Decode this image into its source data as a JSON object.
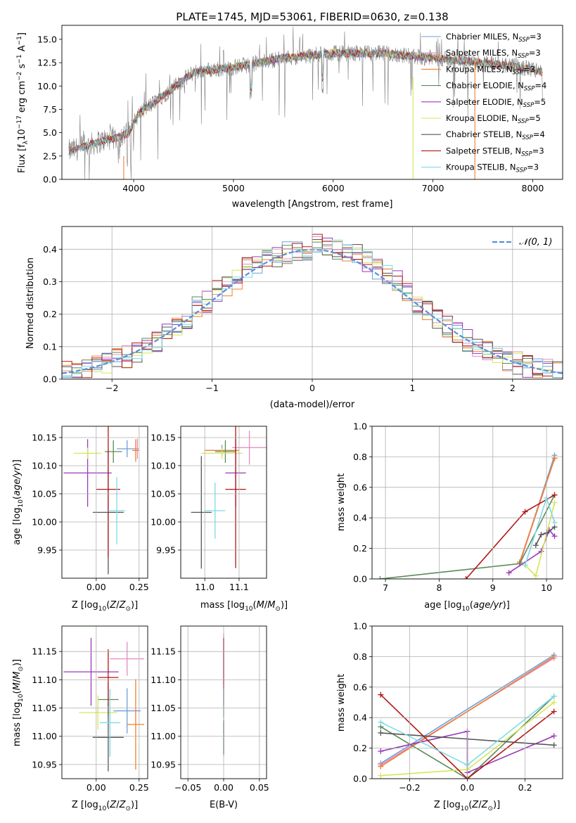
{
  "colors": {
    "chabrier_miles": "#6e9fd6",
    "salpeter_miles": "#e88ac2",
    "kroupa_miles": "#f07f2f",
    "chabrier_elodie": "#5a8a5a",
    "salpeter_elodie": "#9a38b8",
    "kroupa_elodie": "#d6e65a",
    "chabrier_stelib": "#555555",
    "salpeter_stelib": "#b01818",
    "kroupa_stelib": "#7fdbe4",
    "normal": "#5b8ddb",
    "data": "#808080"
  },
  "chart_data": [
    {
      "id": "spectrum",
      "type": "line",
      "title": "PLATE=1745, MJD=53061, FIBERID=0630, z=0.138",
      "xlabel": "wavelength [Angstrom, rest frame]",
      "ylabel": "Flux [fλ10⁻¹⁷ erg cm⁻² s⁻¹ A⁻¹]",
      "xlim": [
        3280,
        8300
      ],
      "ylim": [
        0,
        16.5
      ],
      "xticks": [
        "4000",
        "5000",
        "6000",
        "7000",
        "8000"
      ],
      "yticks": [
        "0.0",
        "2.5",
        "5.0",
        "7.5",
        "10.0",
        "12.5",
        "15.0"
      ],
      "continuum": {
        "x": [
          3350,
          3500,
          3700,
          3850,
          3950,
          4050,
          4300,
          4600,
          5000,
          5500,
          6000,
          6500,
          7000,
          7500,
          8000,
          8100
        ],
        "y": [
          3.0,
          3.5,
          4.2,
          4.5,
          5.0,
          7.0,
          9.0,
          11.5,
          12.0,
          13.0,
          13.5,
          13.5,
          13.0,
          12.5,
          11.8,
          11.5
        ]
      },
      "legend": [
        "Chabrier MILES, N<sub>SSP</sub>=3",
        "Salpeter MILES, N<sub>SSP</sub>=3",
        "Kroupa MILES, N<sub>SSP</sub>=3",
        "Chabrier ELODIE, N<sub>SSP</sub>=4",
        "Salpeter ELODIE, N<sub>SSP</sub>=5",
        "Kroupa ELODIE, N<sub>SSP</sub>=5",
        "Chabrier STELIB, N<sub>SSP</sub>=4",
        "Salpeter STELIB, N<sub>SSP</sub>=3",
        "Kroupa STELIB, N<sub>SSP</sub>=3"
      ],
      "legend_location": "upper right"
    },
    {
      "id": "residuals",
      "type": "histogram",
      "xlabel": "(data-model)/error",
      "ylabel": "Normed distribution",
      "xlim": [
        -2.5,
        2.5
      ],
      "ylim": [
        0,
        0.47
      ],
      "xticks": [
        "−2",
        "−1",
        "0",
        "1",
        "2"
      ],
      "yticks": [
        "0.0",
        "0.1",
        "0.2",
        "0.3",
        "0.4"
      ],
      "bin_edges": [
        -2.5,
        -2.4,
        -2.3,
        -2.2,
        -2.1,
        -2.0,
        -1.9,
        -1.8,
        -1.7,
        -1.6,
        -1.5,
        -1.4,
        -1.3,
        -1.2,
        -1.1,
        -1.0,
        -0.9,
        -0.8,
        -0.7,
        -0.6,
        -0.5,
        -0.4,
        -0.3,
        -0.2,
        -0.1,
        0.0,
        0.1,
        0.2,
        0.3,
        0.4,
        0.5,
        0.6,
        0.7,
        0.8,
        0.9,
        1.0,
        1.1,
        1.2,
        1.3,
        1.4,
        1.5,
        1.6,
        1.7,
        1.8,
        1.9,
        2.0,
        2.1,
        2.2,
        2.3,
        2.4,
        2.5
      ],
      "reference": [
        0.02,
        0.02,
        0.03,
        0.04,
        0.05,
        0.06,
        0.07,
        0.08,
        0.1,
        0.12,
        0.14,
        0.17,
        0.19,
        0.22,
        0.24,
        0.27,
        0.29,
        0.31,
        0.34,
        0.36,
        0.37,
        0.38,
        0.39,
        0.39,
        0.4,
        0.4,
        0.39,
        0.38,
        0.37,
        0.36,
        0.34,
        0.32,
        0.3,
        0.28,
        0.26,
        0.23,
        0.21,
        0.19,
        0.16,
        0.14,
        0.12,
        0.1,
        0.09,
        0.07,
        0.06,
        0.05,
        0.04,
        0.03,
        0.03,
        0.02
      ],
      "normal_curve": {
        "label": "𝒩(0, 1)",
        "mean": 0,
        "sigma": 1
      },
      "legend_location": "upper right"
    },
    {
      "id": "age_vs_Z",
      "type": "errorbar",
      "xlabel": "Z [log₁₀(Z/Z⊙)]",
      "ylabel": "age  [log₁₀(age/yr)]",
      "xlim": [
        -0.2,
        0.3
      ],
      "ylim": [
        9.9,
        10.17
      ],
      "xticks": [
        "0.00",
        "0.25"
      ],
      "yticks": [
        "9.95",
        "10.00",
        "10.05",
        "10.10",
        "10.15"
      ],
      "points": [
        {
          "model": "chabrier_miles",
          "x": 0.18,
          "y": 10.13,
          "xerr": 0.06,
          "yerr": 0.015
        },
        {
          "model": "salpeter_miles",
          "x": 0.24,
          "y": 10.13,
          "xerr": 0.01,
          "yerr": 0.018
        },
        {
          "model": "kroupa_miles",
          "x": 0.23,
          "y": 10.127,
          "xerr": 0.02,
          "yerr": 0.02
        },
        {
          "model": "chabrier_elodie",
          "x": 0.1,
          "y": 10.125,
          "xerr": 0.05,
          "yerr": 0.02
        },
        {
          "model": "salpeter_elodie",
          "x": -0.05,
          "y": 10.087,
          "xerr": 0.14,
          "yerr": 0.06
        },
        {
          "model": "kroupa_elodie",
          "x": -0.05,
          "y": 10.122,
          "xerr": 0.08,
          "yerr": 0.01
        },
        {
          "model": "chabrier_stelib",
          "x": 0.07,
          "y": 10.017,
          "xerr": 0.09,
          "yerr": 0.11
        },
        {
          "model": "salpeter_stelib",
          "x": 0.07,
          "y": 10.058,
          "xerr": 0.07,
          "yerr": 0.12
        },
        {
          "model": "kroupa_stelib",
          "x": 0.12,
          "y": 10.02,
          "xerr": 0.05,
          "yerr": 0.06
        }
      ]
    },
    {
      "id": "age_vs_mass",
      "type": "errorbar",
      "xlabel": "mass [log₁₀(M/M⊙)]",
      "ylabel": "",
      "xlim": [
        10.93,
        11.18
      ],
      "ylim": [
        9.9,
        10.17
      ],
      "xticks": [
        "11.0",
        "11.1"
      ],
      "yticks": [
        "9.95",
        "10.00",
        "10.05",
        "10.10",
        "10.15"
      ],
      "points": [
        {
          "model": "chabrier_miles",
          "x": 11.05,
          "y": 10.127,
          "xerr": 0.05,
          "yerr": 0.01
        },
        {
          "model": "salpeter_miles",
          "x": 11.13,
          "y": 10.132,
          "xerr": 0.05,
          "yerr": 0.03
        },
        {
          "model": "kroupa_miles",
          "x": 11.05,
          "y": 10.127,
          "xerr": 0.05,
          "yerr": 0.005
        },
        {
          "model": "chabrier_elodie",
          "x": 11.06,
          "y": 10.125,
          "xerr": 0.03,
          "yerr": 0.02
        },
        {
          "model": "salpeter_elodie",
          "x": 11.09,
          "y": 10.087,
          "xerr": 0.03,
          "yerr": 0.06
        },
        {
          "model": "kroupa_elodie",
          "x": 11.05,
          "y": 10.122,
          "xerr": 0.06,
          "yerr": 0.01
        },
        {
          "model": "chabrier_stelib",
          "x": 10.99,
          "y": 10.017,
          "xerr": 0.03,
          "yerr": 0.1
        },
        {
          "model": "salpeter_stelib",
          "x": 11.09,
          "y": 10.058,
          "xerr": 0.03,
          "yerr": 0.14
        },
        {
          "model": "kroupa_stelib",
          "x": 11.03,
          "y": 10.02,
          "xerr": 0.03,
          "yerr": 0.05
        }
      ]
    },
    {
      "id": "weight_vs_age",
      "type": "line",
      "xlabel": "age  [log₁₀(age/yr)]",
      "ylabel": "mass weight",
      "xlim": [
        6.75,
        10.3
      ],
      "ylim": [
        0,
        1
      ],
      "xticks": [
        "7",
        "8",
        "9",
        "10"
      ],
      "yticks": [
        "0.0",
        "0.2",
        "0.4",
        "0.6",
        "0.8",
        "1.0"
      ],
      "series": [
        {
          "model": "chabrier_miles",
          "x": [
            9.5,
            10.15
          ],
          "y": [
            0.1,
            0.81
          ]
        },
        {
          "model": "salpeter_miles",
          "x": [
            9.5,
            10.15
          ],
          "y": [
            0.1,
            0.79
          ]
        },
        {
          "model": "kroupa_miles",
          "x": [
            9.5,
            10.15
          ],
          "y": [
            0.11,
            0.79
          ]
        },
        {
          "model": "chabrier_elodie",
          "x": [
            6.9,
            9.5,
            10.15
          ],
          "y": [
            0.0,
            0.1,
            0.55
          ]
        },
        {
          "model": "salpeter_elodie",
          "x": [
            9.3,
            9.9,
            10.05,
            10.15
          ],
          "y": [
            0.04,
            0.18,
            0.32,
            0.28
          ]
        },
        {
          "model": "kroupa_elodie",
          "x": [
            9.6,
            9.8,
            10.15
          ],
          "y": [
            0.09,
            0.02,
            0.5
          ]
        },
        {
          "model": "chabrier_stelib",
          "x": [
            9.8,
            9.9,
            10.0,
            10.15
          ],
          "y": [
            0.22,
            0.29,
            0.3,
            0.34
          ]
        },
        {
          "model": "salpeter_stelib",
          "x": [
            8.5,
            9.6,
            10.15
          ],
          "y": [
            0.0,
            0.44,
            0.55
          ]
        },
        {
          "model": "kroupa_stelib",
          "x": [
            9.6,
            10.0,
            10.15
          ],
          "y": [
            0.09,
            0.53,
            0.37
          ]
        }
      ]
    },
    {
      "id": "mass_vs_Z",
      "type": "errorbar",
      "xlabel": "Z [log₁₀(Z/Z⊙)]",
      "ylabel": "mass [log₁₀(M/M⊙)]",
      "xlim": [
        -0.2,
        0.3
      ],
      "ylim": [
        10.925,
        11.195
      ],
      "xticks": [
        "0.00",
        "0.25"
      ],
      "yticks": [
        "10.95",
        "11.00",
        "11.05",
        "11.10",
        "11.15"
      ],
      "points": [
        {
          "model": "chabrier_miles",
          "x": 0.18,
          "y": 11.045,
          "xerr": 0.08,
          "yerr": 0.04
        },
        {
          "model": "salpeter_miles",
          "x": 0.18,
          "y": 11.137,
          "xerr": 0.1,
          "yerr": 0.03
        },
        {
          "model": "kroupa_miles",
          "x": 0.23,
          "y": 11.021,
          "xerr": 0.05,
          "yerr": 0.08
        },
        {
          "model": "chabrier_elodie",
          "x": 0.07,
          "y": 11.065,
          "xerr": 0.06,
          "yerr": 0.03
        },
        {
          "model": "salpeter_elodie",
          "x": -0.03,
          "y": 11.114,
          "xerr": 0.16,
          "yerr": 0.06
        },
        {
          "model": "kroupa_elodie",
          "x": 0.01,
          "y": 11.042,
          "xerr": 0.11,
          "yerr": 0.03
        },
        {
          "model": "chabrier_stelib",
          "x": 0.07,
          "y": 10.998,
          "xerr": 0.09,
          "yerr": 0.06
        },
        {
          "model": "salpeter_stelib",
          "x": 0.07,
          "y": 11.104,
          "xerr": 0.06,
          "yerr": 0.05
        },
        {
          "model": "kroupa_stelib",
          "x": 0.08,
          "y": 11.024,
          "xerr": 0.06,
          "yerr": 0.06
        }
      ]
    },
    {
      "id": "mass_vs_ebv",
      "type": "errorbar",
      "xlabel": "E(B-V)",
      "ylabel": "",
      "xlim": [
        -0.06,
        0.06
      ],
      "ylim": [
        10.925,
        11.195
      ],
      "xticks": [
        "−0.05",
        "0.00",
        "0.05"
      ],
      "yticks": [
        "10.95",
        "11.00",
        "11.05",
        "11.10",
        "11.15"
      ],
      "points": [
        {
          "model": "salpeter_miles",
          "x": 0.0,
          "y": 11.137,
          "xerr": 0,
          "yerr": 0.045
        },
        {
          "model": "salpeter_elodie",
          "x": 0.0,
          "y": 11.114,
          "xerr": 0,
          "yerr": 0.06
        },
        {
          "model": "salpeter_stelib",
          "x": 0.0,
          "y": 11.104,
          "xerr": 0,
          "yerr": 0.07
        },
        {
          "model": "kroupa_stelib",
          "x": 0.0,
          "y": 11.024,
          "xerr": 0,
          "yerr": 0.06
        },
        {
          "model": "chabrier_stelib",
          "x": 0.0,
          "y": 10.998,
          "xerr": 0,
          "yerr": 0.03
        }
      ]
    },
    {
      "id": "weight_vs_Z",
      "type": "line",
      "xlabel": "Z [log₁₀(Z/Z⊙)]",
      "ylabel": "mass weight",
      "xlim": [
        -0.33,
        0.33
      ],
      "ylim": [
        0,
        1
      ],
      "xticks": [
        "−0.2",
        "0.0",
        "0.2"
      ],
      "yticks": [
        "0.0",
        "0.2",
        "0.4",
        "0.6",
        "0.8",
        "1.0"
      ],
      "series": [
        {
          "model": "chabrier_miles",
          "x": [
            -0.3,
            0.3
          ],
          "y": [
            0.1,
            0.81
          ]
        },
        {
          "model": "salpeter_miles",
          "x": [
            -0.3,
            0.3
          ],
          "y": [
            0.09,
            0.79
          ]
        },
        {
          "model": "kroupa_miles",
          "x": [
            -0.3,
            0.3
          ],
          "y": [
            0.08,
            0.8
          ]
        },
        {
          "model": "chabrier_elodie",
          "x": [
            -0.3,
            0.0,
            0.3
          ],
          "y": [
            0.34,
            0.0,
            0.54
          ]
        },
        {
          "model": "salpeter_elodie",
          "x": [
            -0.3,
            0.0,
            0.0,
            0.3
          ],
          "y": [
            0.18,
            0.31,
            0.04,
            0.28
          ]
        },
        {
          "model": "kroupa_elodie",
          "x": [
            -0.3,
            0.0,
            0.3
          ],
          "y": [
            0.02,
            0.06,
            0.5
          ]
        },
        {
          "model": "chabrier_stelib",
          "x": [
            -0.3,
            0.3
          ],
          "y": [
            0.3,
            0.22
          ]
        },
        {
          "model": "salpeter_stelib",
          "x": [
            -0.3,
            0.0,
            0.3
          ],
          "y": [
            0.55,
            0.0,
            0.44
          ]
        },
        {
          "model": "kroupa_stelib",
          "x": [
            -0.3,
            0.0,
            0.3
          ],
          "y": [
            0.37,
            0.09,
            0.54
          ]
        }
      ]
    }
  ]
}
